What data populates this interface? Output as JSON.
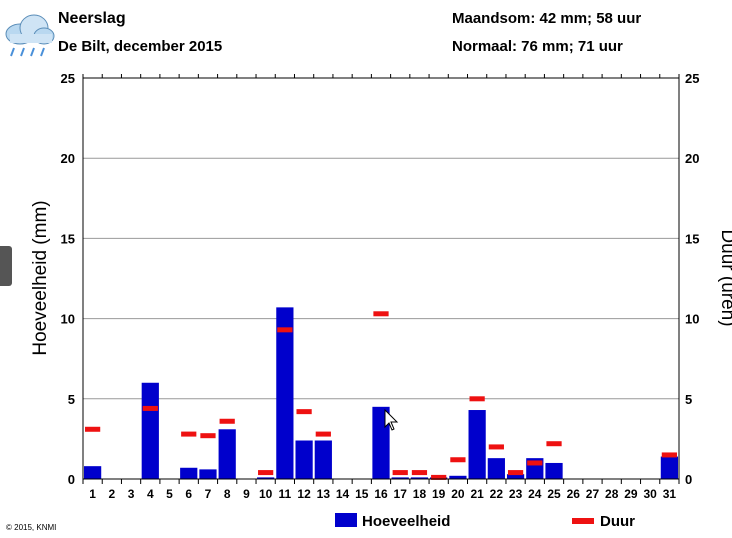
{
  "header": {
    "title": "Neerslag",
    "subtitle": "De Bilt, december 2015",
    "monthly_sum": "Maandsom: 42 mm; 58 uur",
    "normal": "Normaal: 76 mm; 71 uur",
    "weather_icon": "rain-cloud-icon"
  },
  "footer": {
    "copyright": "© 2015, KNMI"
  },
  "colors": {
    "bar": "#0000cc",
    "duration": "#ee1111",
    "grid": "#999999"
  },
  "chart_data": {
    "type": "bar",
    "categories": [
      "1",
      "2",
      "3",
      "4",
      "5",
      "6",
      "7",
      "8",
      "9",
      "10",
      "11",
      "12",
      "13",
      "14",
      "15",
      "16",
      "17",
      "18",
      "19",
      "20",
      "21",
      "22",
      "23",
      "24",
      "25",
      "26",
      "27",
      "28",
      "29",
      "30",
      "31"
    ],
    "series": [
      {
        "name": "Hoeveelheid",
        "type": "bar",
        "axis": "left",
        "values": [
          0.8,
          0,
          0,
          6.0,
          0,
          0.7,
          0.6,
          3.1,
          0,
          0.1,
          10.7,
          2.4,
          2.4,
          0,
          0,
          4.5,
          0.1,
          0.1,
          0.1,
          0.2,
          4.3,
          1.3,
          0.3,
          1.3,
          1.0,
          0,
          0,
          0,
          0,
          0,
          1.4
        ]
      },
      {
        "name": "Duur",
        "type": "marker",
        "axis": "right",
        "values": [
          3.1,
          null,
          null,
          4.4,
          null,
          2.8,
          2.7,
          3.6,
          null,
          0.4,
          9.3,
          4.2,
          2.8,
          null,
          null,
          10.3,
          0.4,
          0.4,
          0.1,
          1.2,
          5.0,
          2.0,
          0.4,
          1.0,
          2.2,
          null,
          null,
          null,
          null,
          null,
          1.5
        ]
      }
    ],
    "ylabel": "Hoeveelheid (mm)",
    "y2label": "Duur (uren)",
    "ylim": [
      0,
      25
    ],
    "y2lim": [
      0,
      25
    ],
    "yticks": [
      "0",
      "5",
      "10",
      "15",
      "20",
      "25"
    ],
    "grid": true,
    "legend": {
      "placement": "bottom-center",
      "entries": [
        "Hoeveelheid",
        "Duur"
      ]
    }
  }
}
